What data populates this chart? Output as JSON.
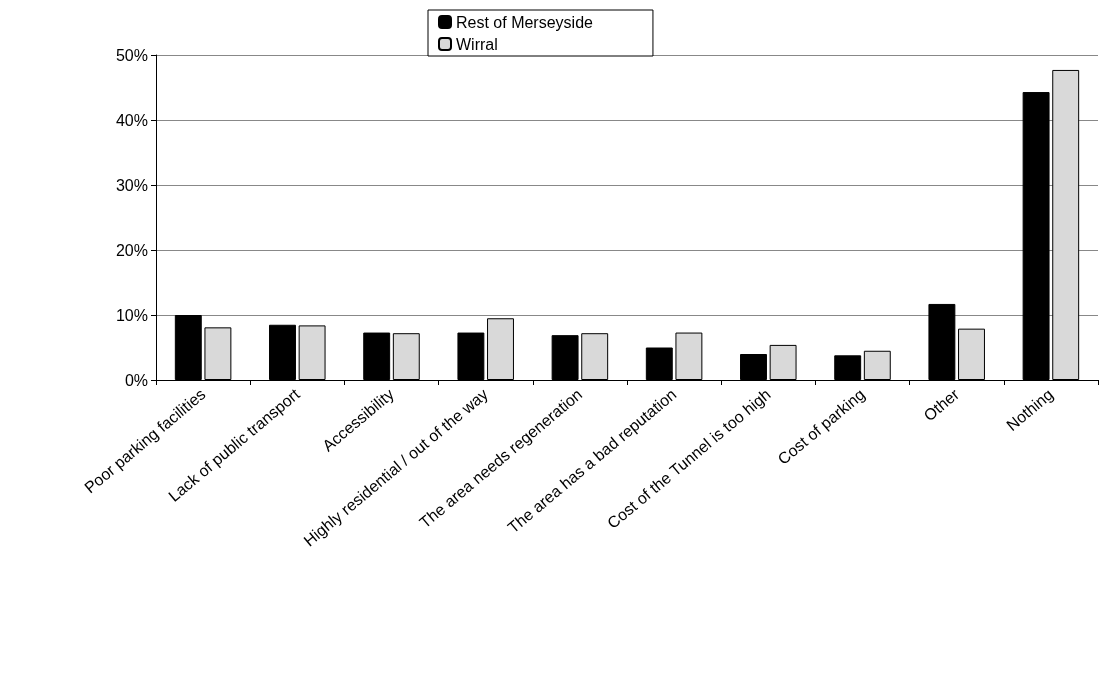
{
  "chart_data": {
    "type": "bar",
    "categories": [
      "Poor parking facilities",
      "Lack of public transport",
      "Accessibility",
      "Highly residential / out of the way",
      "The area needs regeneration",
      "The area has a bad reputation",
      "Cost of the Tunnel is too high",
      "Cost of parking",
      "Other",
      "Nothing"
    ],
    "series": [
      {
        "name": "Rest of Merseyside",
        "color": "#000000",
        "values": [
          10.0,
          8.5,
          7.3,
          7.3,
          6.9,
          5.0,
          4.0,
          3.8,
          11.7,
          44.3
        ]
      },
      {
        "name": "Wirral",
        "color": "#d9d9d9",
        "values": [
          8.1,
          8.4,
          7.2,
          9.5,
          7.2,
          7.3,
          5.4,
          4.5,
          7.9,
          47.7
        ]
      }
    ],
    "ylim": [
      0,
      50
    ],
    "yticks": [
      {
        "value": 0,
        "label": "0%"
      },
      {
        "value": 10,
        "label": "10%"
      },
      {
        "value": 20,
        "label": "20%"
      },
      {
        "value": 30,
        "label": "30%"
      },
      {
        "value": 40,
        "label": "40%"
      },
      {
        "value": 50,
        "label": "50%"
      }
    ],
    "grid": "y",
    "legend": "top"
  }
}
